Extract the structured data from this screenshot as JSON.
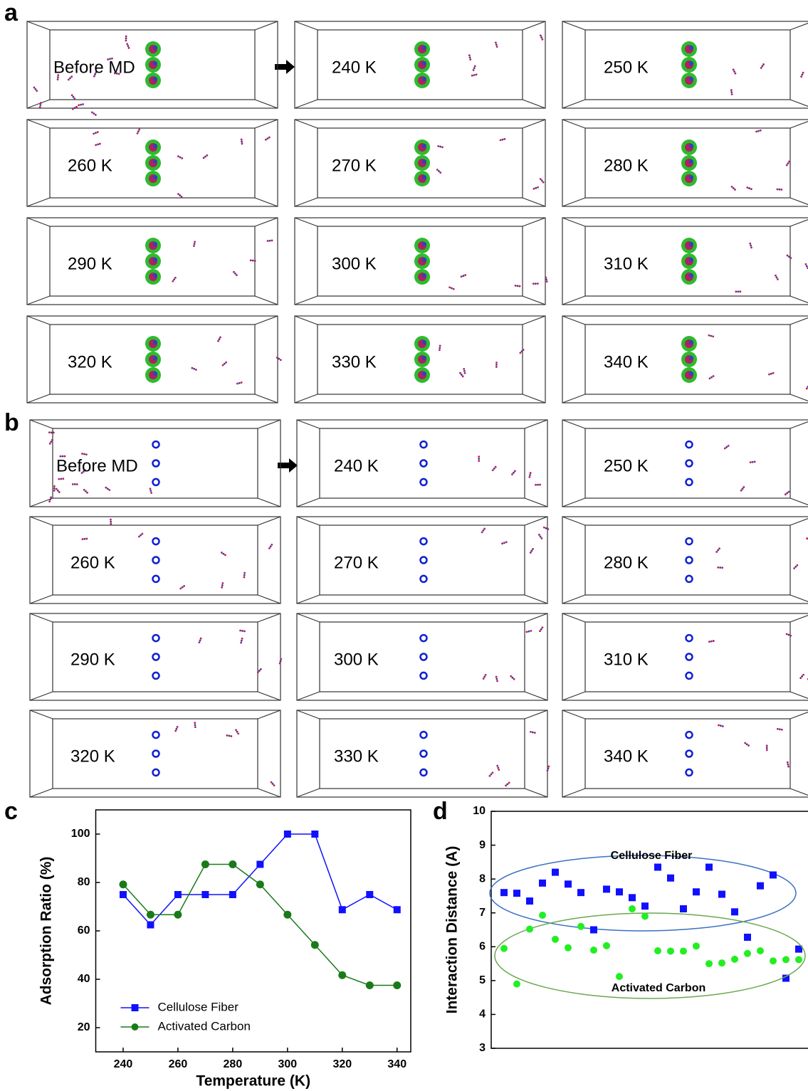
{
  "panel_a": {
    "label": "a",
    "snapshots": [
      "Before MD",
      "240 K",
      "250 K",
      "260 K",
      "270 K",
      "280 K",
      "290 K",
      "300 K",
      "310 K",
      "320 K",
      "330 K",
      "340 K"
    ]
  },
  "panel_b": {
    "label": "b",
    "snapshots": [
      "Before MD",
      "240 K",
      "250 K",
      "260 K",
      "270 K",
      "280 K",
      "290 K",
      "300 K",
      "310 K",
      "320 K",
      "330 K",
      "340 K"
    ]
  },
  "chart_data": [
    {
      "type": "line",
      "label": "c",
      "xlabel": "Temperature (K)",
      "ylabel": "Adsorption Ratio (%)",
      "x": [
        240,
        250,
        260,
        270,
        280,
        290,
        300,
        310,
        320,
        330,
        340
      ],
      "xlim": [
        230,
        345
      ],
      "xticks": [
        240,
        260,
        280,
        300,
        320,
        340
      ],
      "ylim": [
        10,
        110
      ],
      "yticks": [
        20,
        40,
        60,
        80,
        100
      ],
      "legend": "lower left",
      "series": [
        {
          "name": "Cellulose Fiber",
          "color": "#1010ff",
          "marker": "square",
          "values": [
            75,
            62.5,
            75,
            75,
            75,
            87.5,
            100,
            100,
            68.75,
            75,
            68.75
          ]
        },
        {
          "name": "Activated Carbon",
          "color": "#1a7a1a",
          "marker": "circle",
          "values": [
            79.2,
            66.7,
            66.7,
            87.5,
            87.5,
            79.2,
            66.7,
            54.2,
            41.7,
            37.5,
            37.5
          ]
        }
      ]
    },
    {
      "type": "scatter",
      "label": "d",
      "ylabel": "Interaction Distance (A)",
      "categories": [
        null,
        null,
        null,
        null,
        null,
        null,
        null,
        null,
        null,
        null,
        null,
        null,
        null,
        null,
        null,
        null,
        null,
        null,
        null,
        null,
        null,
        null,
        null,
        null
      ],
      "ylim": [
        3,
        10
      ],
      "yticks": [
        3,
        4,
        5,
        6,
        7,
        8,
        9,
        10
      ],
      "series": [
        {
          "name": "Cellulose Fiber",
          "color": "#1010ff",
          "marker": "square",
          "ellipse_color": "#3a6fc4",
          "values": [
            7.6,
            7.58,
            7.35,
            7.88,
            8.2,
            7.85,
            7.6,
            6.5,
            7.7,
            7.62,
            7.45,
            7.2,
            8.35,
            8.03,
            7.12,
            7.62,
            8.35,
            7.55,
            7.03,
            6.28,
            7.8,
            8.12,
            5.07,
            5.93
          ]
        },
        {
          "name": "Activated Carbon",
          "color": "#22ee22",
          "marker": "circle",
          "ellipse_color": "#6aa84f",
          "values": [
            5.95,
            4.9,
            6.52,
            6.93,
            6.22,
            5.97,
            6.6,
            5.9,
            6.03,
            5.12,
            7.12,
            6.9,
            5.88,
            5.87,
            5.87,
            6.02,
            5.5,
            5.52,
            5.63,
            5.8,
            5.88,
            5.58,
            5.62,
            5.62
          ]
        }
      ]
    }
  ]
}
